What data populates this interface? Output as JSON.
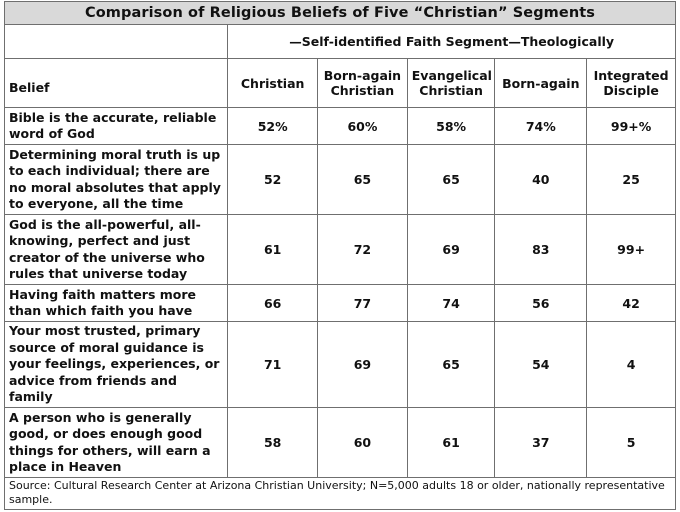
{
  "title": "Comparison of Religious Beliefs of Five “Christian” Segments",
  "segment_header": "—Self-identified Faith Segment—Theologically",
  "columns": {
    "belief": "Belief",
    "c1": "Christian",
    "c2_line1": "Born-again",
    "c2_line2": "Christian",
    "c3_line1": "Evangelical",
    "c3_line2": "Christian",
    "c4": "Born-again",
    "c5_line1": "Integrated",
    "c5_line2": "Disciple"
  },
  "rows": [
    {
      "belief": "Bible is the accurate, reliable word of God",
      "values": [
        "52%",
        "60%",
        "58%",
        "74%",
        "99+%"
      ]
    },
    {
      "belief": "Determining moral truth is up to each individual; there are no moral absolutes that apply to everyone, all the time",
      "values": [
        "52",
        "65",
        "65",
        "40",
        "25"
      ]
    },
    {
      "belief": "God is the all-powerful, all-knowing, perfect and just creator of the universe who rules that universe today",
      "values": [
        "61",
        "72",
        "69",
        "83",
        "99+"
      ]
    },
    {
      "belief": "Having faith matters more than which faith you have",
      "values": [
        "66",
        "77",
        "74",
        "56",
        "42"
      ]
    },
    {
      "belief": "Your most trusted, primary source of moral guidance is your feelings, experiences, or advice from friends and family",
      "values": [
        "71",
        "69",
        "65",
        "54",
        "4"
      ]
    },
    {
      "belief": "A person who is generally good, or does enough good things for others, will earn a place in Heaven",
      "values": [
        "58",
        "60",
        "61",
        "37",
        "5"
      ]
    }
  ],
  "source": "Source: Cultural Research Center at Arizona Christian University; N=5,000 adults 18 or older, nationally representative sample."
}
